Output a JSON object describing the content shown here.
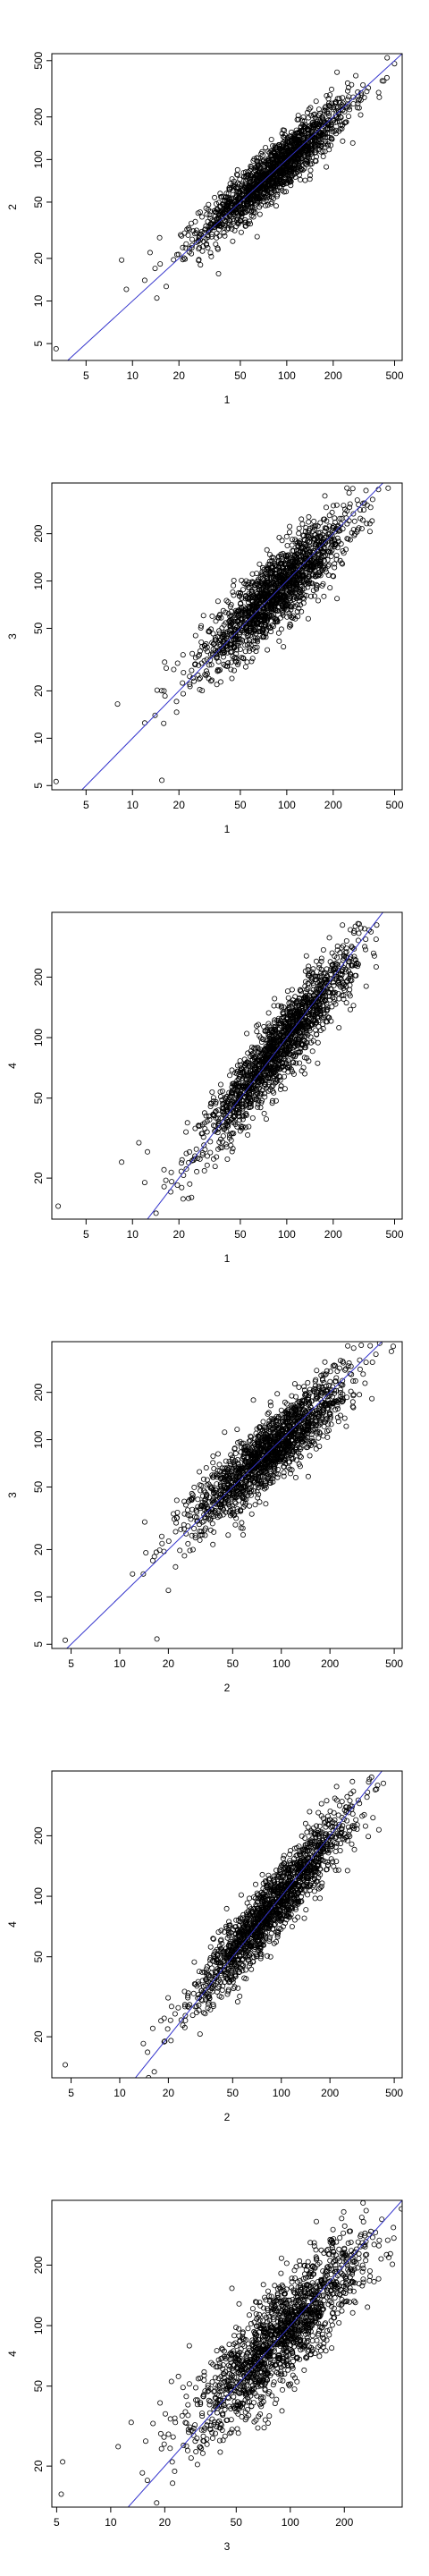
{
  "chart_data": [
    {
      "type": "scatter",
      "scale": "log",
      "xlabel": "1",
      "ylabel": "2",
      "xlim": [
        3,
        560
      ],
      "ylim": [
        3.8,
        560
      ],
      "xticks": [
        5,
        10,
        20,
        50,
        100,
        200,
        500
      ],
      "yticks": [
        5,
        10,
        20,
        50,
        100,
        200,
        500
      ],
      "reference_line": {
        "color": "#3333cc",
        "slope": 1,
        "intercept": 0
      },
      "center": 85,
      "corr": 0.92,
      "outliers": [
        [
          3.2,
          4.6
        ],
        [
          8.5,
          19.5
        ],
        [
          12,
          14
        ],
        [
          13,
          22
        ],
        [
          15,
          28
        ],
        [
          14,
          17
        ]
      ]
    },
    {
      "type": "scatter",
      "scale": "log",
      "xlabel": "1",
      "ylabel": "3",
      "xlim": [
        3,
        560
      ],
      "ylim": [
        4.7,
        420
      ],
      "xticks": [
        5,
        10,
        20,
        50,
        100,
        200,
        500
      ],
      "yticks": [
        5,
        10,
        20,
        50,
        100,
        200
      ],
      "reference_line": {
        "color": "#3333cc",
        "slope": 1,
        "intercept": 0
      },
      "center": 85,
      "corr": 0.88,
      "outliers": [
        [
          3.2,
          5.3
        ],
        [
          15.5,
          5.4
        ],
        [
          8,
          16.5
        ],
        [
          12,
          12.5
        ],
        [
          14,
          14
        ],
        [
          16,
          20
        ]
      ]
    },
    {
      "type": "scatter",
      "scale": "log",
      "xlabel": "1",
      "ylabel": "4",
      "xlim": [
        3,
        560
      ],
      "ylim": [
        12.5,
        420
      ],
      "xticks": [
        5,
        10,
        20,
        50,
        100,
        200,
        500
      ],
      "yticks": [
        20,
        50,
        100,
        200
      ],
      "reference_line": {
        "color": "#3333cc",
        "slope": 1,
        "intercept": 0
      },
      "center": 90,
      "corr": 0.93,
      "outliers": [
        [
          3.3,
          14.5
        ],
        [
          8.5,
          24
        ],
        [
          12,
          19
        ],
        [
          12.5,
          27
        ],
        [
          11,
          30
        ],
        [
          16,
          22
        ]
      ]
    },
    {
      "type": "scatter",
      "scale": "log",
      "xlabel": "2",
      "ylabel": "3",
      "xlim": [
        3.8,
        560
      ],
      "ylim": [
        4.7,
        420
      ],
      "xticks": [
        5,
        10,
        20,
        50,
        100,
        200,
        500
      ],
      "yticks": [
        5,
        10,
        20,
        50,
        100,
        200
      ],
      "reference_line": {
        "color": "#3333cc",
        "slope": 1,
        "intercept": 0
      },
      "center": 85,
      "corr": 0.89,
      "outliers": [
        [
          4.6,
          5.3
        ],
        [
          17,
          5.4
        ],
        [
          14,
          14
        ],
        [
          20,
          11
        ],
        [
          16,
          17
        ],
        [
          12,
          14
        ]
      ]
    },
    {
      "type": "scatter",
      "scale": "log",
      "xlabel": "2",
      "ylabel": "4",
      "xlim": [
        3.8,
        560
      ],
      "ylim": [
        12.5,
        420
      ],
      "xticks": [
        5,
        10,
        20,
        50,
        100,
        200,
        500
      ],
      "yticks": [
        20,
        50,
        100,
        200
      ],
      "reference_line": {
        "color": "#3333cc",
        "slope": 1,
        "intercept": 0
      },
      "center": 90,
      "corr": 0.94,
      "outliers": [
        [
          4.6,
          14.5
        ],
        [
          14,
          18.5
        ],
        [
          19,
          19
        ],
        [
          18,
          24
        ],
        [
          22,
          26
        ],
        [
          16,
          22
        ]
      ]
    },
    {
      "type": "scatter",
      "scale": "log",
      "xlabel": "3",
      "ylabel": "4",
      "xlim": [
        4.7,
        420
      ],
      "ylim": [
        12.5,
        420
      ],
      "xticks": [
        5,
        10,
        20,
        50,
        100,
        200
      ],
      "yticks": [
        20,
        50,
        100,
        200
      ],
      "reference_line": {
        "color": "#3333cc",
        "slope": 1,
        "intercept": 0
      },
      "center": 90,
      "corr": 0.86,
      "outliers": [
        [
          5.3,
          14.5
        ],
        [
          5.4,
          21
        ],
        [
          15,
          18.5
        ],
        [
          19,
          29
        ],
        [
          11,
          25
        ],
        [
          13,
          33
        ],
        [
          22,
          21
        ]
      ]
    }
  ]
}
